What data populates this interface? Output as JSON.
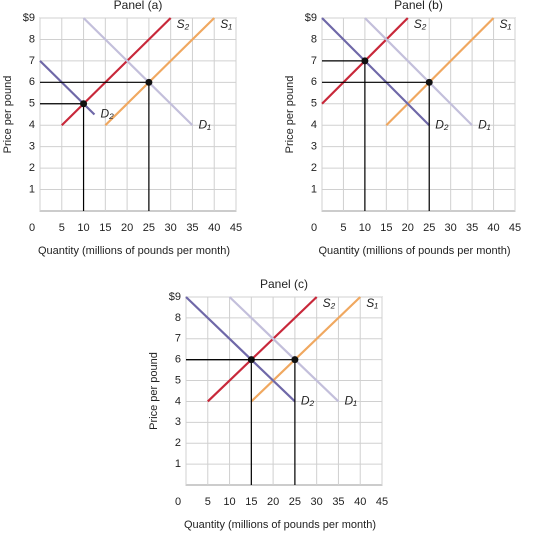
{
  "chart_data": [
    {
      "type": "line",
      "title": "Panel (a)",
      "xlabel": "Quantity (millions of pounds per month)",
      "ylabel": "Price per pound",
      "xlim": [
        0,
        45
      ],
      "ylim": [
        0,
        9
      ],
      "xticks": [
        0,
        5,
        10,
        15,
        20,
        25,
        30,
        35,
        40,
        45
      ],
      "yticks": [
        1,
        2,
        3,
        4,
        5,
        6,
        7,
        8,
        {
          "value": 9,
          "label": "$9"
        }
      ],
      "grid": true,
      "series": [
        {
          "name": "S₂",
          "color": "#c8283a",
          "x": [
            5,
            30
          ],
          "y": [
            4,
            9
          ]
        },
        {
          "name": "S₁",
          "color": "#f0a860",
          "x": [
            15,
            40
          ],
          "y": [
            4,
            9
          ]
        },
        {
          "name": "D₂",
          "color": "#6f68a8",
          "x": [
            0,
            12.5
          ],
          "y": [
            7,
            4.5
          ]
        },
        {
          "name": "D₁",
          "color": "#c3bfdb",
          "x": [
            10,
            35
          ],
          "y": [
            9,
            4
          ]
        }
      ],
      "points": {
        "x": [
          10,
          25
        ],
        "y": [
          5,
          6
        ]
      }
    },
    {
      "type": "line",
      "title": "Panel (b)",
      "xlabel": "Quantity (millions of pounds per month)",
      "ylabel": "Price per pound",
      "xlim": [
        0,
        45
      ],
      "ylim": [
        0,
        9
      ],
      "xticks": [
        0,
        5,
        10,
        15,
        20,
        25,
        30,
        35,
        40,
        45
      ],
      "yticks": [
        1,
        2,
        3,
        4,
        5,
        6,
        7,
        8,
        {
          "value": 9,
          "label": "$9"
        }
      ],
      "grid": true,
      "series": [
        {
          "name": "S₂",
          "color": "#c8283a",
          "x": [
            0,
            20
          ],
          "y": [
            5,
            9
          ]
        },
        {
          "name": "S₁",
          "color": "#f0a860",
          "x": [
            15,
            40
          ],
          "y": [
            4,
            9
          ]
        },
        {
          "name": "D₂",
          "color": "#6f68a8",
          "x": [
            0,
            25
          ],
          "y": [
            9,
            4
          ]
        },
        {
          "name": "D₁",
          "color": "#c3bfdb",
          "x": [
            10,
            35
          ],
          "y": [
            9,
            4
          ]
        }
      ],
      "points": {
        "x": [
          10,
          25
        ],
        "y": [
          7,
          6
        ]
      }
    },
    {
      "type": "line",
      "title": "Panel (c)",
      "xlabel": "Quantity (millions of pounds per month)",
      "ylabel": "Price per pound",
      "xlim": [
        0,
        45
      ],
      "ylim": [
        0,
        9
      ],
      "xticks": [
        0,
        5,
        10,
        15,
        20,
        25,
        30,
        35,
        40,
        45
      ],
      "yticks": [
        1,
        2,
        3,
        4,
        5,
        6,
        7,
        8,
        {
          "value": 9,
          "label": "$9"
        }
      ],
      "grid": true,
      "series": [
        {
          "name": "S₂",
          "color": "#c8283a",
          "x": [
            5,
            30
          ],
          "y": [
            4,
            9
          ]
        },
        {
          "name": "S₁",
          "color": "#f0a860",
          "x": [
            15,
            40
          ],
          "y": [
            4,
            9
          ]
        },
        {
          "name": "D₂",
          "color": "#6f68a8",
          "x": [
            0,
            25
          ],
          "y": [
            9,
            4
          ]
        },
        {
          "name": "D₁",
          "color": "#c3bfdb",
          "x": [
            10,
            35
          ],
          "y": [
            9,
            4
          ]
        }
      ],
      "points": {
        "x": [
          15,
          25
        ],
        "y": [
          6,
          6
        ]
      }
    }
  ]
}
